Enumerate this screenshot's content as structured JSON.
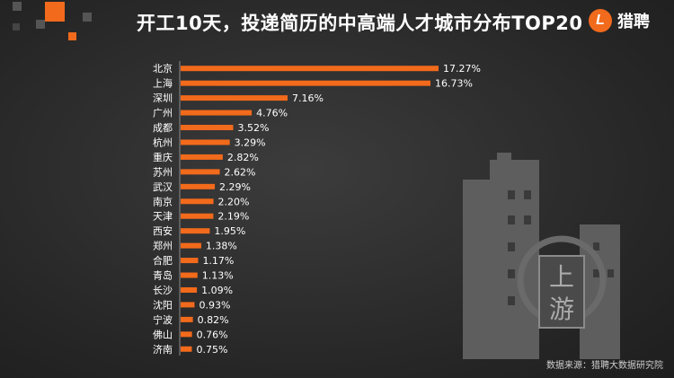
{
  "header": {
    "title": "开工10天，投递简历的中高端人才城市分布TOP20",
    "brand_logo": "L",
    "brand_name": "猎聘"
  },
  "watermark": {
    "line1": "上",
    "line2": "游"
  },
  "source": "数据来源：猎聘大数据研究院",
  "colors": {
    "bar": "#f26a1b",
    "accent": "#f26a1b",
    "background": "#2b2b2b"
  },
  "chart_data": {
    "type": "bar",
    "orientation": "horizontal",
    "title": "开工10天，投递简历的中高端人才城市分布TOP20",
    "categories": [
      "北京",
      "上海",
      "深圳",
      "广州",
      "成都",
      "杭州",
      "重庆",
      "苏州",
      "武汉",
      "南京",
      "天津",
      "西安",
      "郑州",
      "合肥",
      "青岛",
      "长沙",
      "沈阳",
      "宁波",
      "佛山",
      "济南"
    ],
    "values": [
      17.27,
      16.73,
      7.16,
      4.76,
      3.52,
      3.29,
      2.82,
      2.62,
      2.29,
      2.2,
      2.19,
      1.95,
      1.38,
      1.17,
      1.13,
      1.09,
      0.93,
      0.82,
      0.76,
      0.75
    ],
    "labels": [
      "17.27%",
      "16.73%",
      "7.16%",
      "4.76%",
      "3.52%",
      "3.29%",
      "2.82%",
      "2.62%",
      "2.29%",
      "2.20%",
      "2.19%",
      "1.95%",
      "1.38%",
      "1.17%",
      "1.13%",
      "1.09%",
      "0.93%",
      "0.82%",
      "0.76%",
      "0.75%"
    ],
    "unit": "%",
    "xlabel": "",
    "ylabel": "",
    "grid": false,
    "legend": "none"
  }
}
